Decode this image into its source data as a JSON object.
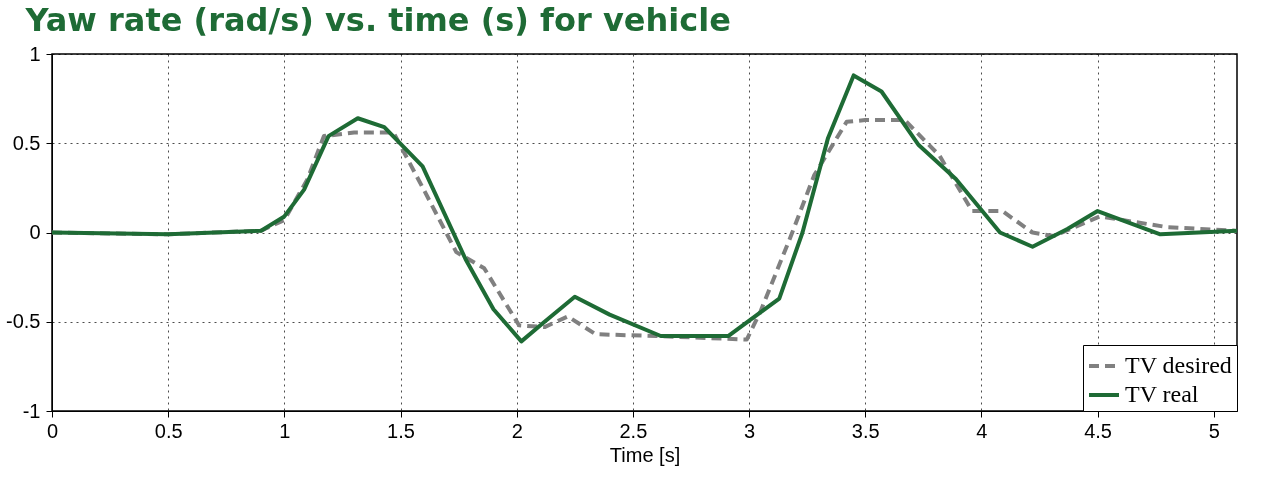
{
  "chart_data": {
    "type": "line",
    "title": "Yaw rate (rad/s) vs. time (s) for vehicle",
    "xlabel": "Time [s]",
    "xlim": [
      0,
      5.1
    ],
    "xticks": [
      0,
      0.5,
      1,
      1.5,
      2,
      2.5,
      3,
      3.5,
      4,
      4.5,
      5
    ],
    "ylim": [
      -1,
      1
    ],
    "yticks": [
      -1,
      -0.5,
      0,
      0.5,
      1
    ],
    "grid": true,
    "legend": "bottom right",
    "series": [
      {
        "name": "TV desired",
        "color": "#808080",
        "line_style": "dashed",
        "x": [
          0,
          0.5,
          0.9,
          1.0,
          1.1,
          1.17,
          1.3,
          1.47,
          1.6,
          1.74,
          1.86,
          2.01,
          2.12,
          2.22,
          2.34,
          2.6,
          2.99,
          3.05,
          3.18,
          3.28,
          3.42,
          3.5,
          3.67,
          3.82,
          3.96,
          4.09,
          4.22,
          4.31,
          4.51,
          4.8,
          5.09
        ],
        "values": [
          0,
          -0.01,
          0.01,
          0.07,
          0.3,
          0.54,
          0.56,
          0.56,
          0.24,
          -0.11,
          -0.2,
          -0.52,
          -0.53,
          -0.47,
          -0.57,
          -0.58,
          -0.6,
          -0.44,
          -0.02,
          0.32,
          0.62,
          0.63,
          0.63,
          0.43,
          0.12,
          0.12,
          0,
          -0.02,
          0.09,
          0.03,
          0.01
        ]
      },
      {
        "name": "TV real",
        "color": "#1e6b35",
        "line_style": "solid",
        "x": [
          0,
          0.5,
          0.9,
          1.0,
          1.085,
          1.19,
          1.316,
          1.43,
          1.595,
          1.78,
          1.9,
          2.02,
          2.12,
          2.25,
          2.4,
          2.62,
          2.91,
          3.13,
          3.23,
          3.34,
          3.45,
          3.57,
          3.73,
          3.89,
          4.08,
          4.22,
          4.37,
          4.5,
          4.77,
          5.1
        ],
        "values": [
          0,
          -0.01,
          0.01,
          0.09,
          0.24,
          0.54,
          0.64,
          0.59,
          0.37,
          -0.15,
          -0.43,
          -0.61,
          -0.5,
          -0.36,
          -0.46,
          -0.58,
          -0.58,
          -0.37,
          0,
          0.53,
          0.88,
          0.79,
          0.49,
          0.3,
          0,
          -0.08,
          0.02,
          0.12,
          -0.01,
          0.01
        ]
      }
    ]
  }
}
